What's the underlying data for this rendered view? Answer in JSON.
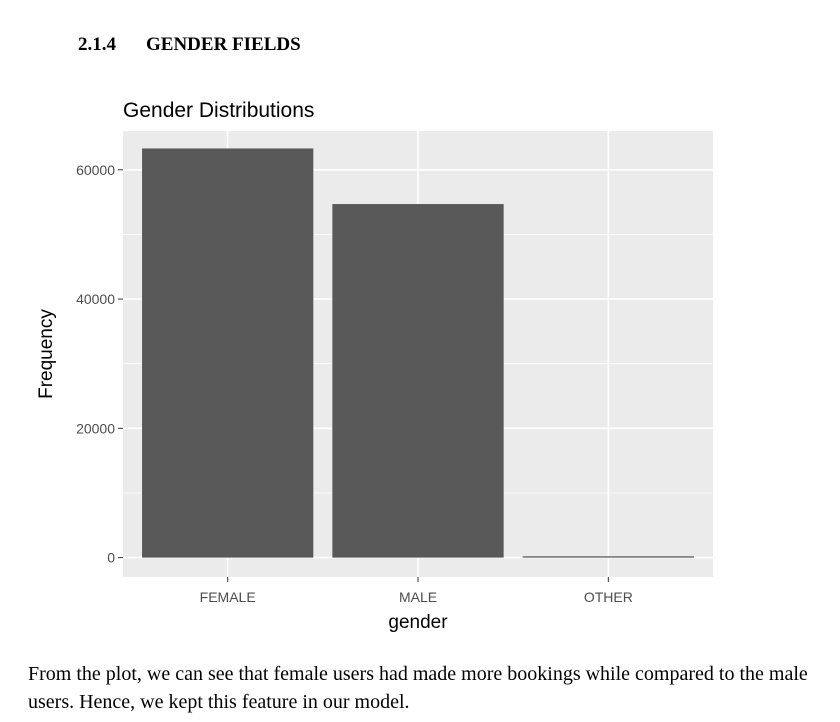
{
  "section": {
    "number": "2.1.4",
    "title": "GENDER FIELDS"
  },
  "chart_data": {
    "type": "bar",
    "title": "Gender Distributions",
    "xlabel": "gender",
    "ylabel": "Frequency",
    "categories": [
      "FEMALE",
      "MALE",
      "OTHER"
    ],
    "values": [
      63300,
      54700,
      200
    ],
    "ylim": [
      -3000,
      66000
    ],
    "yticks": [
      0,
      20000,
      40000,
      60000
    ],
    "grid": true,
    "colors": {
      "panel": "#ebebeb",
      "grid": "#ffffff",
      "bar": "#595959",
      "text": "#000000",
      "tick_text": "#4d4d4d",
      "tick": "#333333"
    }
  },
  "body_text": "From the plot, we can see that female users had made more bookings while compared to the male users. Hence, we kept this feature in our model."
}
